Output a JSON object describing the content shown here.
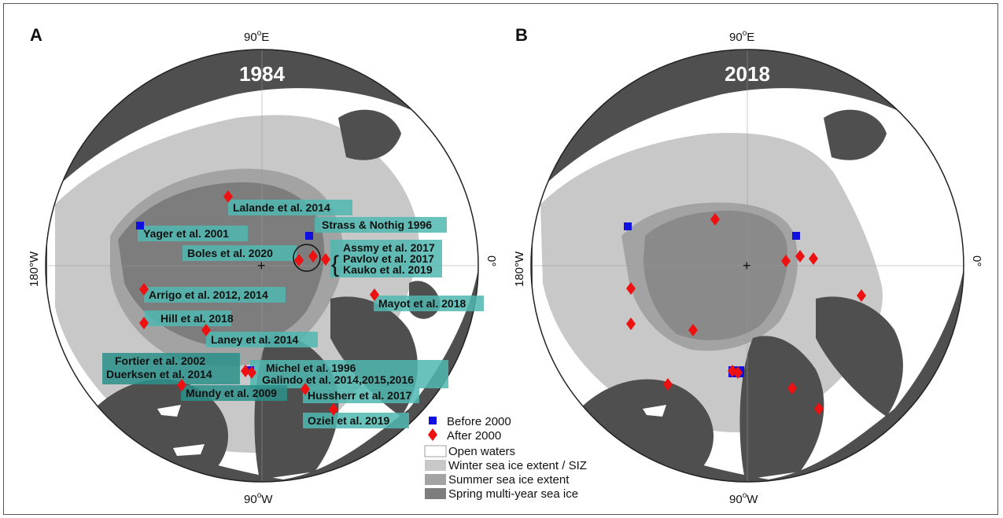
{
  "panels": [
    {
      "letter": "A",
      "year": "1984",
      "compass": {
        "top": "90°E",
        "top_base": "90",
        "top_sup": "o",
        "top_dir": "E",
        "bottom_base": "90",
        "bottom_sup": "o",
        "bottom_dir": "W",
        "left": "180°W",
        "right": "0°"
      }
    },
    {
      "letter": "B",
      "year": "2018",
      "compass": {
        "top_base": "90",
        "top_sup": "o",
        "top_dir": "E",
        "bottom_base": "90",
        "bottom_sup": "o",
        "bottom_dir": "W",
        "left": "180°W",
        "right": "0°"
      }
    }
  ],
  "study_labels": [
    "Lalande et al. 2014",
    "Yager et al. 2001",
    "Strass & Nothig 1996",
    "Boles et al. 2020",
    "Assmy et al. 2017",
    "Pavlov et al. 2017",
    "Kauko et al. 2019",
    "Arrigo et al. 2012, 2014",
    "Mayot et al. 2018",
    "Hill et al. 2018",
    "Laney et al. 2014",
    "Fortier et al. 2002",
    "Duerksen et al. 2014",
    "Michel et al. 1996",
    "Galindo et al. 2014,2015,2016",
    "Mundy et al. 2009",
    "Hussherr et al. 2017",
    "Oziel et al. 2019"
  ],
  "legend": {
    "before": "Before 2000",
    "after": "After 2000",
    "open": "Open waters",
    "winter": "Winter sea ice extent / SIZ",
    "summer": "Summer sea ice extent",
    "spring": "Spring multi-year sea ice"
  },
  "colors": {
    "land": "#4f4f4f",
    "open_water": "#ffffff",
    "winter_ice": "#c8c8c8",
    "summer_ice": "#a3a3a3",
    "multiyear_ice": "#7d7d7d",
    "before_marker": "#1010e0",
    "after_marker": "#ee1111",
    "label_box": "#4fb8b0"
  }
}
